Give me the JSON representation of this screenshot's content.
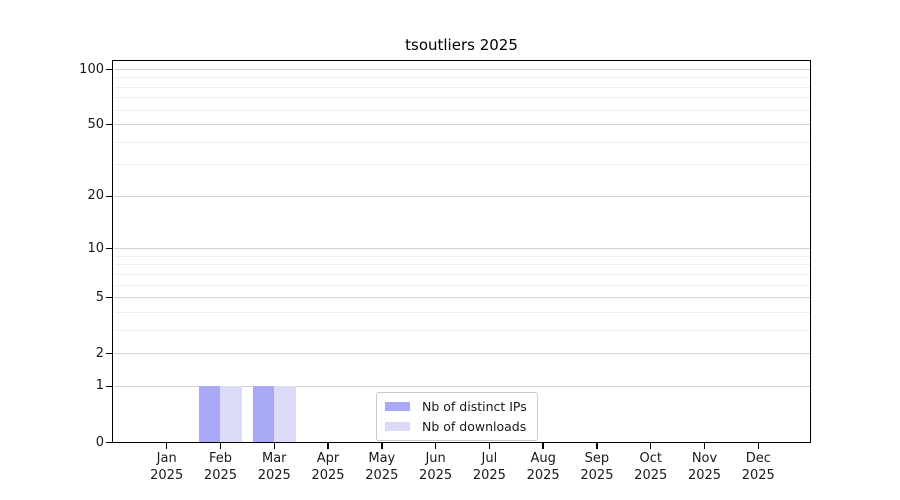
{
  "figure": {
    "background": "#ffffff"
  },
  "chart_data": {
    "type": "bar",
    "title": "tsoutliers 2025",
    "months": [
      {
        "month": "Jan",
        "year": "2025"
      },
      {
        "month": "Feb",
        "year": "2025"
      },
      {
        "month": "Mar",
        "year": "2025"
      },
      {
        "month": "Apr",
        "year": "2025"
      },
      {
        "month": "May",
        "year": "2025"
      },
      {
        "month": "Jun",
        "year": "2025"
      },
      {
        "month": "Jul",
        "year": "2025"
      },
      {
        "month": "Aug",
        "year": "2025"
      },
      {
        "month": "Sep",
        "year": "2025"
      },
      {
        "month": "Oct",
        "year": "2025"
      },
      {
        "month": "Nov",
        "year": "2025"
      },
      {
        "month": "Dec",
        "year": "2025"
      }
    ],
    "series": [
      {
        "name": "Nb of distinct IPs",
        "color": "#a8a8f4",
        "values": [
          0,
          1,
          1,
          0,
          0,
          0,
          0,
          0,
          0,
          0,
          0,
          0
        ]
      },
      {
        "name": "Nb of downloads",
        "color": "#dbdbf8",
        "values": [
          0,
          1,
          1,
          0,
          0,
          0,
          0,
          0,
          0,
          0,
          0,
          0
        ]
      }
    ],
    "y_axis": {
      "scale": "log1p",
      "major_ticks": [
        0,
        1,
        2,
        5,
        10,
        20,
        50,
        100
      ],
      "minor_gridlines": [
        3,
        4,
        6,
        7,
        8,
        9,
        30,
        40,
        60,
        70,
        80,
        90
      ],
      "range": [
        0,
        111
      ]
    },
    "x_axis": {
      "unit": "month",
      "year": "2025"
    },
    "legend": {
      "position": "inside-bottom-center"
    },
    "grid": true
  },
  "colors": {
    "axis": "#000000",
    "grid_major": "#d4d4d4",
    "grid_minor": "#ededed",
    "text": "#1a1a1a",
    "legend_border": "#c9c9c9"
  }
}
